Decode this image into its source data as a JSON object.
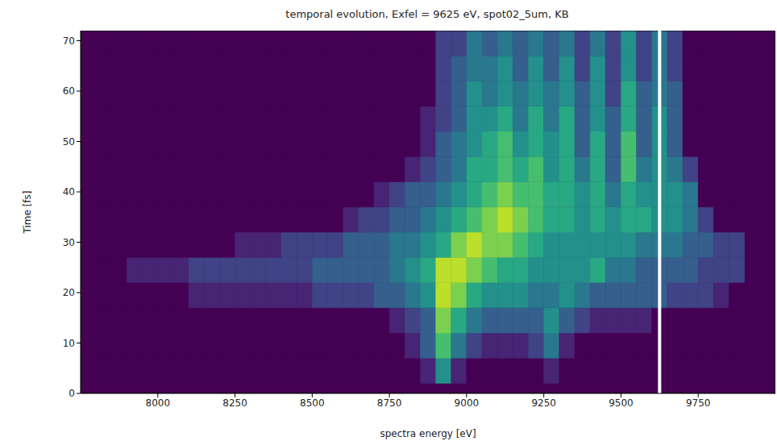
{
  "chart_data": {
    "type": "heatmap",
    "title": "temporal evolution, Exfel = 9625 eV, spot02_5um, KB",
    "xlabel": "spectra energy [eV]",
    "ylabel": "Time [fs]",
    "xlim": [
      7750,
      10000
    ],
    "xticks": [
      8000,
      8250,
      8500,
      8750,
      9000,
      9250,
      9500,
      9750
    ],
    "ylim": [
      0,
      72
    ],
    "yticks": [
      0,
      10,
      20,
      30,
      40,
      50,
      60,
      70
    ],
    "x_edges": [
      7800,
      7850,
      7900,
      7950,
      8000,
      8050,
      8100,
      8150,
      8200,
      8250,
      8300,
      8350,
      8400,
      8450,
      8500,
      8550,
      8600,
      8650,
      8700,
      8750,
      8800,
      8850,
      8900,
      8950,
      9000,
      9050,
      9100,
      9150,
      9200,
      9250,
      9300,
      9350,
      9400,
      9450,
      9500,
      9550,
      9600,
      9650,
      9700,
      9750,
      9800,
      9850,
      9900
    ],
    "y_edges": [
      2,
      7,
      12,
      17,
      22,
      27,
      32,
      37,
      42,
      47,
      52,
      57,
      62,
      67,
      72
    ],
    "zlim": [
      0,
      10
    ],
    "z": [
      [
        0,
        0,
        0,
        0,
        0,
        0,
        0,
        0,
        0,
        0,
        0,
        0,
        0,
        0,
        0,
        0,
        0,
        0,
        0,
        0,
        0,
        1,
        5,
        1,
        0,
        0,
        0,
        0,
        0,
        1,
        0,
        0,
        0,
        0,
        0,
        0,
        0,
        0,
        0,
        0,
        0,
        0
      ],
      [
        0,
        0,
        0,
        0,
        0,
        0,
        0,
        0,
        0,
        0,
        0,
        0,
        0,
        0,
        0,
        0,
        0,
        0,
        0,
        0,
        1,
        3,
        7,
        4,
        2,
        1,
        1,
        1,
        2,
        4,
        1,
        0,
        0,
        0,
        0,
        0,
        0,
        0,
        0,
        0,
        0,
        0
      ],
      [
        0,
        0,
        0,
        0,
        0,
        0,
        0,
        0,
        0,
        0,
        0,
        0,
        0,
        0,
        0,
        0,
        0,
        0,
        0,
        1,
        2,
        3,
        8,
        6,
        4,
        3,
        3,
        3,
        3,
        5,
        3,
        2,
        1,
        1,
        1,
        1,
        0,
        0,
        0,
        0,
        0,
        0
      ],
      [
        0,
        0,
        0,
        0,
        0,
        0,
        1,
        1,
        1,
        1,
        1,
        1,
        1,
        1,
        2,
        2,
        2,
        2,
        3,
        3,
        4,
        5,
        9,
        8,
        6,
        5,
        5,
        5,
        4,
        4,
        5,
        4,
        3,
        3,
        3,
        3,
        3,
        2,
        2,
        2,
        1,
        0
      ],
      [
        0,
        0,
        1,
        1,
        1,
        1,
        2,
        2,
        2,
        2,
        2,
        2,
        2,
        2,
        3,
        3,
        3,
        3,
        3,
        4,
        5,
        6,
        9,
        9,
        8,
        7,
        6,
        6,
        5,
        5,
        5,
        5,
        6,
        4,
        4,
        3,
        3,
        3,
        3,
        2,
        2,
        2
      ],
      [
        0,
        0,
        0,
        0,
        0,
        0,
        0,
        0,
        0,
        1,
        1,
        1,
        2,
        2,
        2,
        2,
        3,
        3,
        3,
        4,
        4,
        5,
        6,
        8,
        9,
        8,
        8,
        7,
        6,
        5,
        5,
        5,
        5,
        5,
        5,
        4,
        4,
        4,
        3,
        3,
        2,
        2
      ],
      [
        0,
        0,
        0,
        0,
        0,
        0,
        0,
        0,
        0,
        0,
        0,
        0,
        0,
        0,
        0,
        0,
        1,
        2,
        2,
        3,
        3,
        4,
        5,
        6,
        7,
        8,
        9,
        8,
        7,
        6,
        6,
        5,
        6,
        5,
        6,
        6,
        5,
        5,
        4,
        2,
        0,
        0
      ],
      [
        0,
        0,
        0,
        0,
        0,
        0,
        0,
        0,
        0,
        0,
        0,
        0,
        0,
        0,
        0,
        0,
        0,
        0,
        1,
        2,
        3,
        3,
        4,
        5,
        6,
        7,
        8,
        7,
        7,
        6,
        6,
        5,
        6,
        4,
        6,
        5,
        5,
        5,
        4,
        0,
        0,
        0
      ],
      [
        0,
        0,
        0,
        0,
        0,
        0,
        0,
        0,
        0,
        0,
        0,
        0,
        0,
        0,
        0,
        0,
        0,
        0,
        0,
        0,
        1,
        2,
        3,
        4,
        6,
        6,
        7,
        6,
        7,
        5,
        6,
        4,
        6,
        3,
        7,
        4,
        5,
        4,
        2,
        0,
        0,
        0
      ],
      [
        0,
        0,
        0,
        0,
        0,
        0,
        0,
        0,
        0,
        0,
        0,
        0,
        0,
        0,
        0,
        0,
        0,
        0,
        0,
        0,
        0,
        1,
        3,
        4,
        5,
        6,
        7,
        5,
        6,
        5,
        6,
        3,
        6,
        3,
        7,
        3,
        5,
        3,
        0,
        0,
        0,
        0
      ],
      [
        0,
        0,
        0,
        0,
        0,
        0,
        0,
        0,
        0,
        0,
        0,
        0,
        0,
        0,
        0,
        0,
        0,
        0,
        0,
        0,
        0,
        1,
        2,
        3,
        5,
        5,
        6,
        4,
        6,
        4,
        6,
        3,
        5,
        3,
        6,
        3,
        5,
        3,
        0,
        0,
        0,
        0
      ],
      [
        0,
        0,
        0,
        0,
        0,
        0,
        0,
        0,
        0,
        0,
        0,
        0,
        0,
        0,
        0,
        0,
        0,
        0,
        0,
        0,
        0,
        0,
        2,
        3,
        5,
        4,
        5,
        4,
        5,
        4,
        5,
        3,
        5,
        2,
        6,
        3,
        4,
        3,
        0,
        0,
        0,
        0
      ],
      [
        0,
        0,
        0,
        0,
        0,
        0,
        0,
        0,
        0,
        0,
        0,
        0,
        0,
        0,
        0,
        0,
        0,
        0,
        0,
        0,
        0,
        0,
        2,
        3,
        4,
        4,
        5,
        3,
        5,
        3,
        5,
        2,
        5,
        2,
        5,
        2,
        4,
        2,
        0,
        0,
        0,
        0
      ],
      [
        0,
        0,
        0,
        0,
        0,
        0,
        0,
        0,
        0,
        0,
        0,
        0,
        0,
        0,
        0,
        0,
        0,
        0,
        0,
        0,
        0,
        0,
        2,
        2,
        4,
        3,
        4,
        3,
        4,
        3,
        4,
        2,
        4,
        2,
        5,
        2,
        4,
        2,
        0,
        0,
        0,
        0
      ]
    ],
    "vline": {
      "x": 9625,
      "color": "#ffffff"
    }
  }
}
